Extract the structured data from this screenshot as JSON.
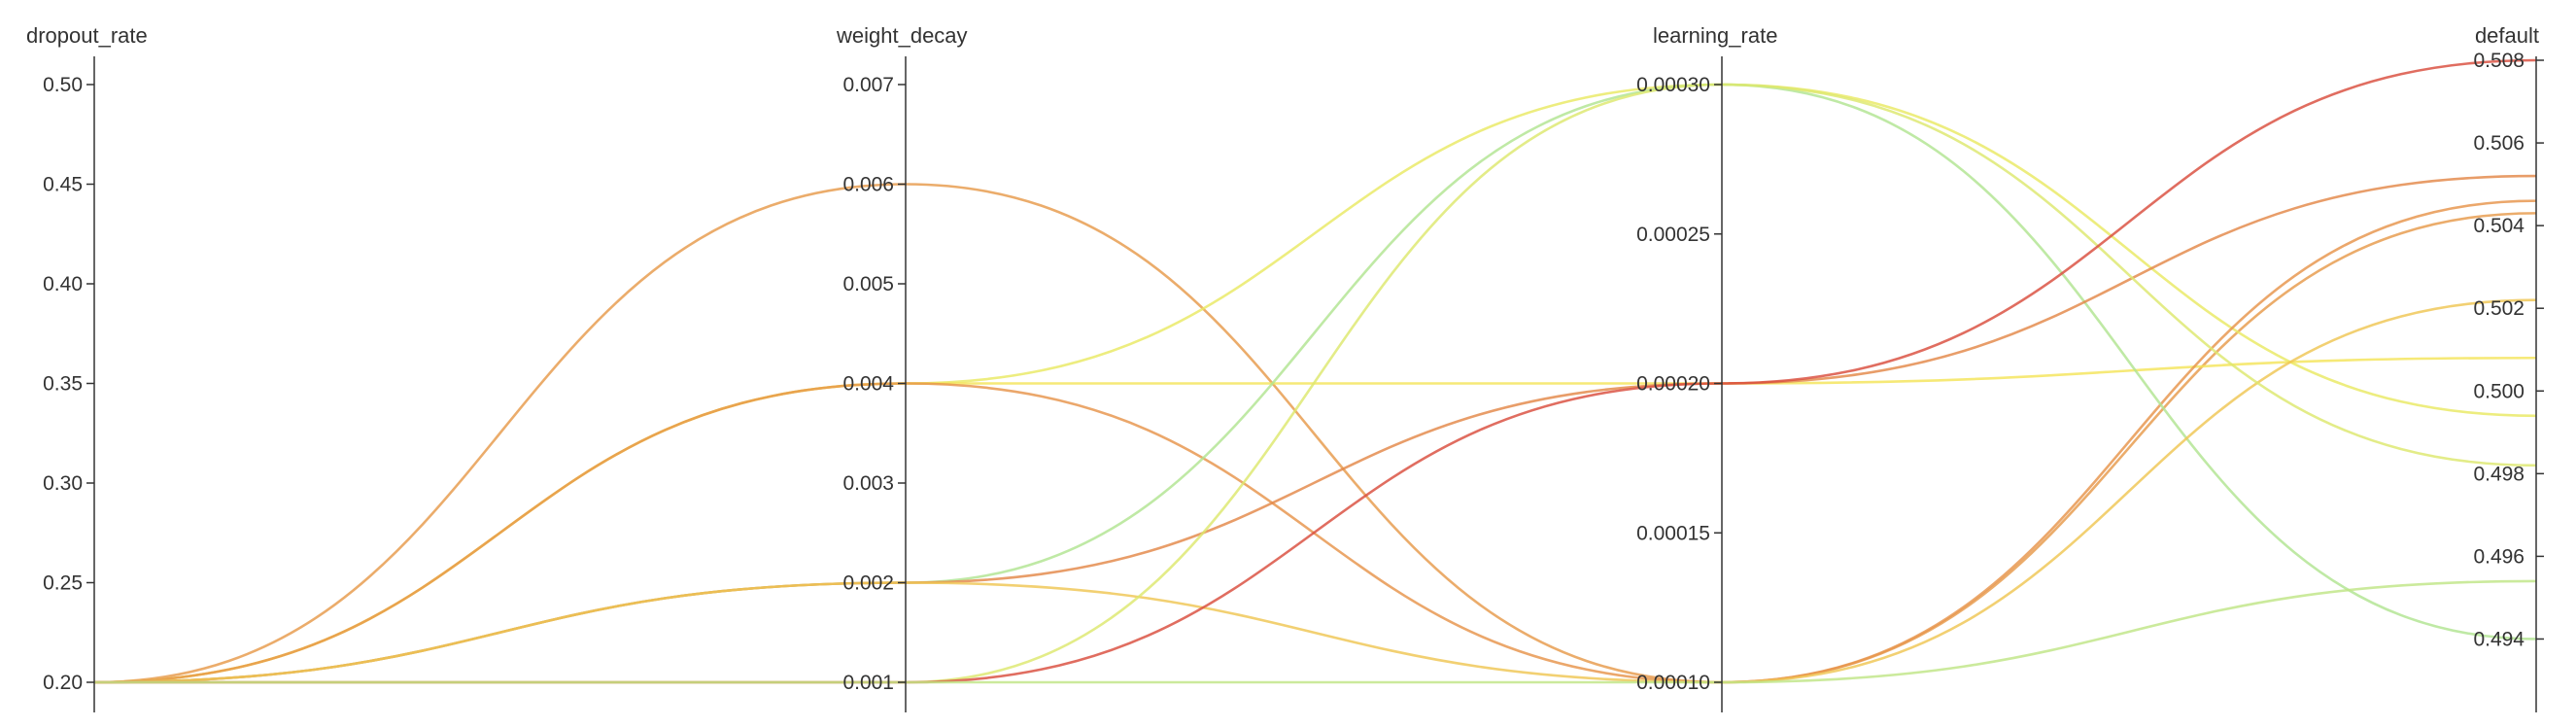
{
  "chart_data": {
    "type": "parallel_coordinates",
    "axes": [
      {
        "key": "dropout_rate",
        "title": "dropout_rate",
        "domain": [
          0.2,
          0.5
        ],
        "tick_labels": [
          "0.20",
          "0.25",
          "0.30",
          "0.35",
          "0.40",
          "0.45",
          "0.50"
        ]
      },
      {
        "key": "weight_decay",
        "title": "weight_decay",
        "domain": [
          0.001,
          0.007
        ],
        "tick_labels": [
          "0.001",
          "0.002",
          "0.003",
          "0.004",
          "0.005",
          "0.006",
          "0.007"
        ]
      },
      {
        "key": "learning_rate",
        "title": "learning_rate",
        "domain": [
          0.0001,
          0.0003
        ],
        "tick_labels": [
          "0.00010",
          "0.00015",
          "0.00020",
          "0.00025",
          "0.00030"
        ]
      },
      {
        "key": "default",
        "title": "default",
        "domain": [
          0.493,
          0.508
        ],
        "tick_labels": [
          "0.494",
          "0.496",
          "0.498",
          "0.500",
          "0.502",
          "0.504",
          "0.506",
          "0.508"
        ]
      }
    ],
    "color_scale": {
      "low": "#a6e39a",
      "mid": "#f5ea5a",
      "high": "#d94d3d",
      "by": "default"
    },
    "series": [
      {
        "values": [
          0.2,
          0.006,
          0.0001,
          0.5043
        ]
      },
      {
        "values": [
          0.2,
          0.004,
          0.0003,
          0.4994
        ]
      },
      {
        "values": [
          0.2,
          0.004,
          0.0002,
          0.5008
        ]
      },
      {
        "values": [
          0.2,
          0.004,
          0.0001,
          0.5046
        ]
      },
      {
        "values": [
          0.2,
          0.002,
          0.0003,
          0.494
        ]
      },
      {
        "values": [
          0.2,
          0.002,
          0.0002,
          0.5052
        ]
      },
      {
        "values": [
          0.2,
          0.002,
          0.0001,
          0.5022
        ]
      },
      {
        "values": [
          0.2,
          0.001,
          0.0003,
          0.4982
        ]
      },
      {
        "values": [
          0.2,
          0.001,
          0.0002,
          0.508
        ]
      },
      {
        "values": [
          0.2,
          0.001,
          0.0001,
          0.4954
        ]
      }
    ]
  }
}
